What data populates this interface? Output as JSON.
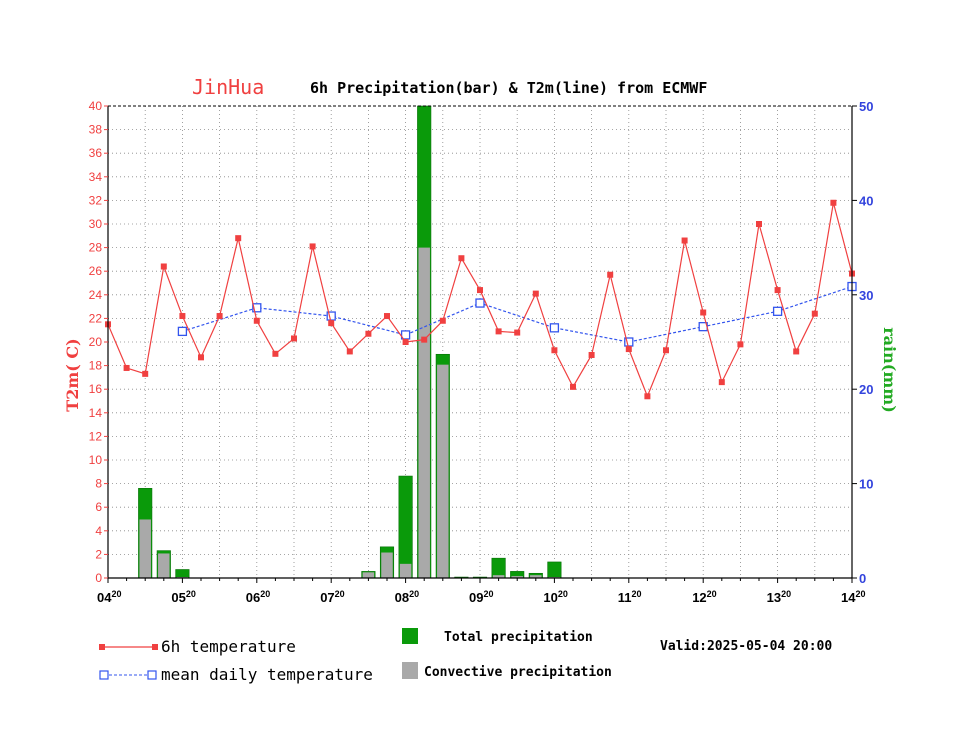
{
  "colors": {
    "temp": "#f04040",
    "mean": "#3355ee",
    "total_precip": "#0a9a0a",
    "conv_precip": "#a9a9a9",
    "rain_label": "#22aa22",
    "axis": "#000000"
  },
  "chart_data": {
    "type": "bar+line",
    "title_city": "JinHua",
    "title": "6h Precipitation(bar) & T2m(line) from ECMWF",
    "ylabel_left": "T2m( C)",
    "ylabel_right": "rain(mm)",
    "ylim_left": [
      0,
      40
    ],
    "ylim_right": [
      0,
      50
    ],
    "yticks_left": [
      "0",
      "2",
      "4",
      "6",
      "8",
      "10",
      "12",
      "14",
      "16",
      "18",
      "20",
      "22",
      "24",
      "26",
      "28",
      "30",
      "32",
      "34",
      "36",
      "38",
      "40"
    ],
    "yticks_right": [
      "0",
      "10",
      "20",
      "30",
      "40",
      "50"
    ],
    "xlim": [
      0,
      40
    ],
    "xticks": [
      {
        "day": "04",
        "hour": "20"
      },
      {
        "day": "05",
        "hour": "20"
      },
      {
        "day": "06",
        "hour": "20"
      },
      {
        "day": "07",
        "hour": "20"
      },
      {
        "day": "08",
        "hour": "20"
      },
      {
        "day": "09",
        "hour": "20"
      },
      {
        "day": "10",
        "hour": "20"
      },
      {
        "day": "11",
        "hour": "20"
      },
      {
        "day": "12",
        "hour": "20"
      },
      {
        "day": "13",
        "hour": "20"
      },
      {
        "day": "14",
        "hour": "20"
      }
    ],
    "grid": true,
    "temperature_6h": [
      21.5,
      17.8,
      17.3,
      26.4,
      22.2,
      18.7,
      22.2,
      28.8,
      21.8,
      19.0,
      20.3,
      28.1,
      21.6,
      19.2,
      20.7,
      22.2,
      20.0,
      20.2,
      21.8,
      27.1,
      24.4,
      20.9,
      20.8,
      24.1,
      19.3,
      16.2,
      18.9,
      25.7,
      19.4,
      15.4,
      19.3,
      28.6,
      22.5,
      16.6,
      19.8,
      30.0,
      24.4,
      19.2,
      22.4,
      31.8,
      25.8
    ],
    "mean_daily_temperature": [
      {
        "x": 4,
        "y": 20.9
      },
      {
        "x": 8,
        "y": 22.9
      },
      {
        "x": 12,
        "y": 22.2
      },
      {
        "x": 16,
        "y": 20.6
      },
      {
        "x": 20,
        "y": 23.3
      },
      {
        "x": 24,
        "y": 21.2
      },
      {
        "x": 28,
        "y": 20.0
      },
      {
        "x": 32,
        "y": 21.3
      },
      {
        "x": 36,
        "y": 22.6
      },
      {
        "x": 40,
        "y": 24.7
      }
    ],
    "precipitation": [
      {
        "x": 2,
        "total": 9.5,
        "convective": 6.2
      },
      {
        "x": 3,
        "total": 2.9,
        "convective": 2.6
      },
      {
        "x": 4,
        "total": 0.9,
        "convective": 0.1
      },
      {
        "x": 14,
        "total": 0.7,
        "convective": 0.6
      },
      {
        "x": 15,
        "total": 3.3,
        "convective": 2.7
      },
      {
        "x": 16,
        "total": 10.8,
        "convective": 1.5
      },
      {
        "x": 17,
        "total": 50.0,
        "convective": 35.0
      },
      {
        "x": 18,
        "total": 23.7,
        "convective": 22.6
      },
      {
        "x": 19,
        "total": 0.1,
        "convective": 0.05
      },
      {
        "x": 20,
        "total": 0.1,
        "convective": 0.05
      },
      {
        "x": 21,
        "total": 2.1,
        "convective": 0.3
      },
      {
        "x": 22,
        "total": 0.7,
        "convective": 0.2
      },
      {
        "x": 23,
        "total": 0.5,
        "convective": 0.3
      },
      {
        "x": 24,
        "total": 1.7,
        "convective": 0.1
      }
    ]
  },
  "legend": {
    "temp_label": "6h temperature",
    "mean_label": "mean daily temperature",
    "total_label": "Total precipitation",
    "conv_label": "Convective precipitation",
    "valid_text": "Valid:2025-05-04 20:00"
  }
}
